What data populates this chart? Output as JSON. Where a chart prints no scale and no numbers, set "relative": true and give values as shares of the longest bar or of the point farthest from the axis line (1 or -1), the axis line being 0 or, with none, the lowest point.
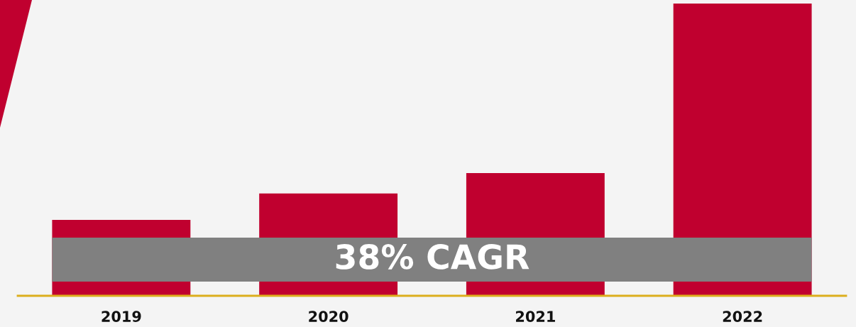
{
  "chart_data": {
    "type": "bar",
    "categories": [
      "2019",
      "2020",
      "2021",
      "2022"
    ],
    "values": [
      0.26,
      0.35,
      0.42,
      1
    ],
    "color": "#c0002f",
    "relative": true,
    "annotations": [
      "38% CAGR"
    ]
  }
}
